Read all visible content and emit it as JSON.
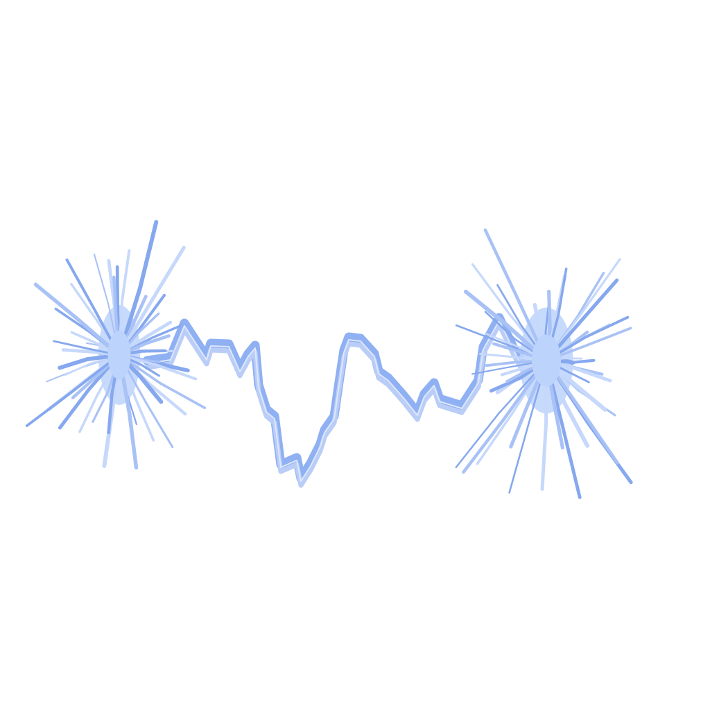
{
  "artwork": {
    "subject": "lightning-bolt-between-two-bursts",
    "colors": {
      "background": "#ffffff",
      "bolt_outer": "#8fb0f2",
      "bolt_inner": "#b9cdf7",
      "bolt_core": "#dde7fc",
      "burst_light": "#c6d8fb",
      "burst_mid": "#a9c2f6",
      "burst_dark": "#86a8ee",
      "burst_core": "#bcd3fb"
    }
  }
}
